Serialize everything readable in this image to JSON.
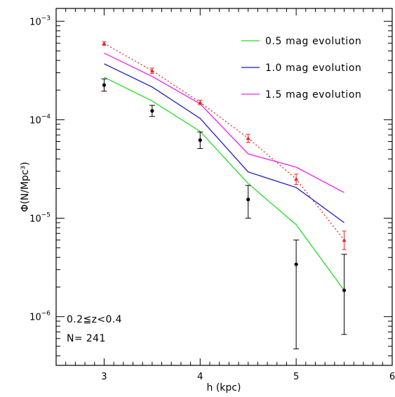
{
  "chart_data": {
    "type": "line",
    "xlabel": "h (kpc)",
    "ylabel": "Φ(N/Mpc³)",
    "xlim": [
      2.5,
      6
    ],
    "ylim": [
      3.2e-07,
      0.00135
    ],
    "yscale": "log",
    "x_ticks": [
      "3",
      "4",
      "5",
      "6"
    ],
    "y_ticks": [
      {
        "value": 1e-06,
        "base": "10",
        "exp": "−6"
      },
      {
        "value": 1e-05,
        "base": "10",
        "exp": "−5"
      },
      {
        "value": 0.0001,
        "base": "10",
        "exp": "−4"
      },
      {
        "value": 0.001,
        "base": "10",
        "exp": "−3"
      }
    ],
    "legend_position": "top-right",
    "annotations": [
      "0.2≦z<0.4",
      "N= 241"
    ],
    "colors": {
      "green": "#22dd22",
      "blue": "#1a1acc",
      "magenta": "#ee22ee",
      "red": "#ee2222",
      "black": "#000000"
    },
    "series": [
      {
        "name": "0.5 mag evolution",
        "style": "solid",
        "color": "#22dd22",
        "x": [
          3,
          3.5,
          4,
          4.5,
          5,
          5.5
        ],
        "y": [
          0.00027,
          0.000155,
          7.6e-05,
          2.25e-05,
          8.6e-06,
          1.85e-06
        ]
      },
      {
        "name": "1.0 mag evolution",
        "style": "solid",
        "color": "#1a1acc",
        "x": [
          3,
          3.5,
          4,
          4.5,
          5,
          5.5
        ],
        "y": [
          0.00037,
          0.000215,
          0.000103,
          2.95e-05,
          2.05e-05,
          9e-06
        ]
      },
      {
        "name": "1.5 mag evolution",
        "style": "solid",
        "color": "#ee22ee",
        "x": [
          3,
          3.5,
          4,
          4.5,
          5,
          5.5
        ],
        "y": [
          0.000475,
          0.000275,
          0.000145,
          4.5e-05,
          3.3e-05,
          1.82e-05
        ]
      },
      {
        "name": "",
        "style": "dotted-points",
        "color": "#ee2222",
        "x": [
          3,
          3.5,
          4,
          4.5,
          5,
          5.5
        ],
        "y": [
          0.000595,
          0.000315,
          0.00015,
          6.5e-05,
          2.5e-05,
          6e-06
        ],
        "yerr_low": [
          0.00057,
          0.000295,
          0.000142,
          5.9e-05,
          2.2e-05,
          4.8e-06
        ],
        "yerr_high": [
          0.00062,
          0.000335,
          0.000158,
          7.1e-05,
          2.8e-05,
          7.4e-06
        ]
      },
      {
        "name": "",
        "style": "points",
        "color": "#000000",
        "x": [
          3,
          3.5,
          4,
          4.5,
          5,
          5.5
        ],
        "y": [
          0.000225,
          0.000123,
          6.2e-05,
          1.55e-05,
          3.4e-06,
          1.85e-06
        ],
        "yerr_low": [
          0.000195,
          0.000108,
          5.1e-05,
          1e-05,
          4.7e-07,
          6.6e-07
        ],
        "yerr_high": [
          0.00026,
          0.00014,
          7.5e-05,
          2.15e-05,
          6e-06,
          4.3e-06
        ]
      }
    ]
  }
}
